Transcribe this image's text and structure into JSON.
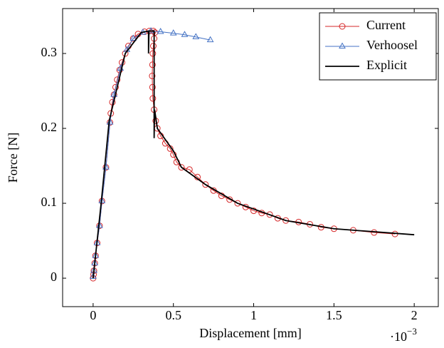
{
  "chart_data": {
    "type": "line",
    "x_label": "Displacement [mm]",
    "y_label": "Force [N]",
    "x_multiplier": {
      "base": "·10",
      "exponent": "−3"
    },
    "xlim": [
      -0.19,
      2.15
    ],
    "ylim": [
      -0.038,
      0.36
    ],
    "xticks": [
      0,
      0.5,
      1,
      1.5,
      2
    ],
    "yticks": [
      0,
      0.1,
      0.2,
      0.3
    ],
    "legend": "upper right",
    "series": [
      {
        "name": "Current",
        "color": "#d62728",
        "marker": "circle",
        "x": [
          0,
          0.003,
          0.005,
          0.01,
          0.015,
          0.025,
          0.04,
          0.055,
          0.08,
          0.105,
          0.11,
          0.12,
          0.13,
          0.14,
          0.15,
          0.165,
          0.18,
          0.2,
          0.22,
          0.25,
          0.28,
          0.32,
          0.35,
          0.375,
          0.385,
          0.38,
          0.375,
          0.372,
          0.37,
          0.368,
          0.37,
          0.372,
          0.38,
          0.39,
          0.4,
          0.42,
          0.45,
          0.48,
          0.5,
          0.52,
          0.55,
          0.6,
          0.65,
          0.7,
          0.75,
          0.8,
          0.85,
          0.9,
          0.95,
          1.0,
          1.05,
          1.1,
          1.15,
          1.2,
          1.28,
          1.35,
          1.42,
          1.5,
          1.62,
          1.75,
          1.88
        ],
        "values": [
          0,
          0.005,
          0.01,
          0.02,
          0.03,
          0.047,
          0.07,
          0.103,
          0.148,
          0.208,
          0.22,
          0.235,
          0.245,
          0.255,
          0.265,
          0.278,
          0.288,
          0.3,
          0.31,
          0.32,
          0.326,
          0.329,
          0.33,
          0.33,
          0.328,
          0.32,
          0.31,
          0.3,
          0.285,
          0.27,
          0.255,
          0.24,
          0.225,
          0.21,
          0.2,
          0.19,
          0.18,
          0.173,
          0.165,
          0.155,
          0.148,
          0.145,
          0.135,
          0.125,
          0.117,
          0.11,
          0.105,
          0.1,
          0.095,
          0.09,
          0.087,
          0.085,
          0.08,
          0.077,
          0.075,
          0.072,
          0.068,
          0.066,
          0.064,
          0.061,
          0.059
        ]
      },
      {
        "name": "Verhoosel",
        "color": "#4472c4",
        "marker": "triangle",
        "x": [
          0,
          0.005,
          0.01,
          0.015,
          0.025,
          0.04,
          0.055,
          0.08,
          0.105,
          0.13,
          0.17,
          0.21,
          0.25,
          0.31,
          0.36,
          0.42,
          0.5,
          0.57,
          0.64,
          0.73
        ],
        "values": [
          0.002,
          0.01,
          0.02,
          0.03,
          0.047,
          0.07,
          0.103,
          0.148,
          0.208,
          0.245,
          0.28,
          0.305,
          0.32,
          0.328,
          0.33,
          0.329,
          0.327,
          0.325,
          0.322,
          0.318
        ]
      },
      {
        "name": "Explicit",
        "color": "#000000",
        "marker": "none",
        "x": [
          0,
          0.05,
          0.1,
          0.2,
          0.3,
          0.345,
          0.345,
          0.348,
          0.38,
          0.38,
          0.383,
          0.4,
          0.5,
          0.55,
          0.7,
          0.9,
          1.2,
          1.5,
          2.0
        ],
        "values": [
          0,
          0.1,
          0.21,
          0.3,
          0.328,
          0.33,
          0.3,
          0.33,
          0.33,
          0.187,
          0.225,
          0.2,
          0.17,
          0.148,
          0.125,
          0.1,
          0.077,
          0.066,
          0.058
        ]
      }
    ]
  }
}
